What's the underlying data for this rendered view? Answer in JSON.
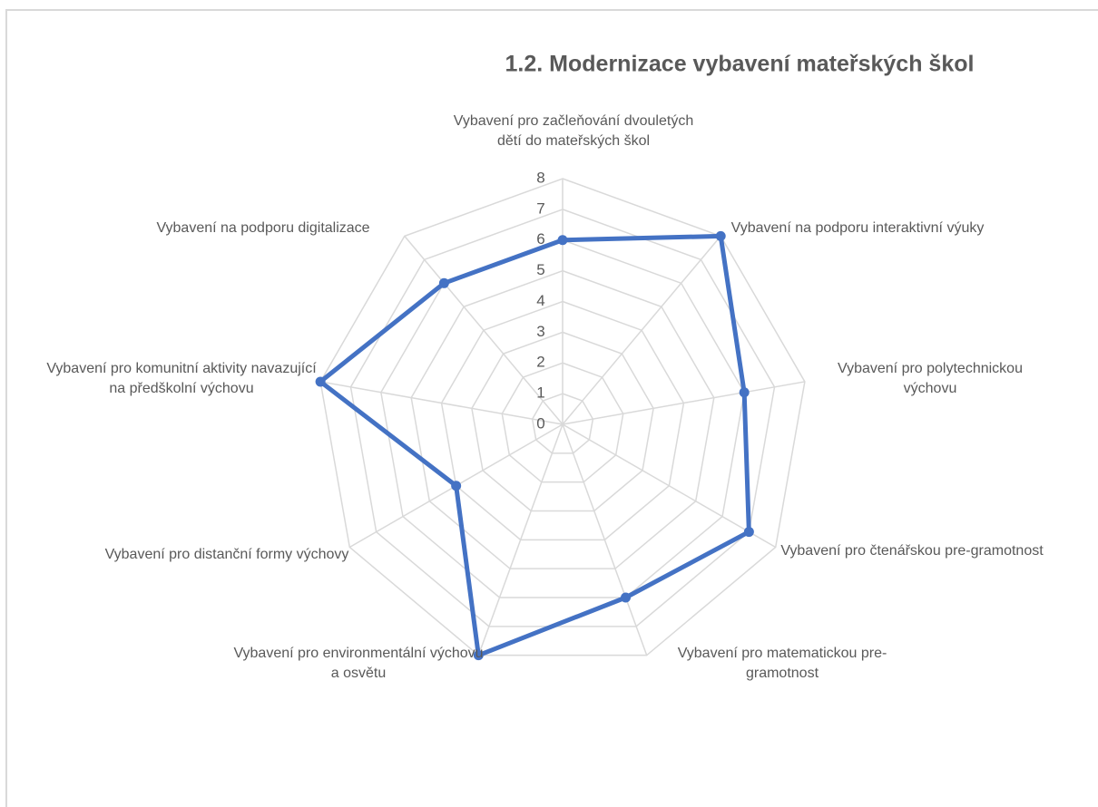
{
  "chart_data": {
    "type": "radar",
    "title": "1.2.  Modernizace vybavení mateřských škol",
    "categories": [
      "Vybavení pro začleňování dvouletých dětí do mateřských škol",
      "Vybavení na podporu interaktivní výuky",
      "Vybavení pro polytechnickou výchovu",
      "Vybavení pro čtenářskou pre-gramotnost",
      "Vybavení pro matematickou pre-gramotnost",
      "Vybavení pro environmentální výchovu a osvětu",
      "Vybavení pro distanční formy výchovy",
      "Vybavení pro komunitní aktivity navazující na předškolní výchovu",
      "Vybavení na podporu digitalizace"
    ],
    "values": [
      6,
      8,
      6,
      7,
      6,
      8,
      4,
      8,
      6
    ],
    "color": "#4472c4",
    "ylim": [
      0,
      8
    ],
    "yticks": [
      0,
      1,
      2,
      3,
      4,
      5,
      6,
      7,
      8
    ],
    "grid": true
  }
}
